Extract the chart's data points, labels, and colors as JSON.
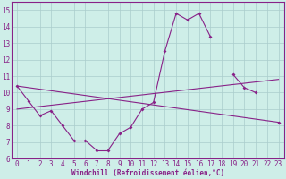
{
  "xlabel": "Windchill (Refroidissement éolien,°C)",
  "hours": [
    0,
    1,
    2,
    3,
    4,
    5,
    6,
    7,
    8,
    9,
    10,
    11,
    12,
    13,
    14,
    15,
    16,
    17,
    18,
    19,
    20,
    21,
    22,
    23
  ],
  "temp_curve": [
    10.4,
    9.5,
    8.6,
    8.9,
    8.0,
    7.1,
    7.1,
    6.5,
    6.5,
    7.5,
    7.9,
    9.0,
    9.4,
    12.5,
    14.8,
    14.4,
    14.8,
    13.4,
    null,
    11.1,
    10.3,
    10.0,
    null,
    8.2
  ],
  "straight_line1": [
    [
      0,
      10.4
    ],
    [
      23,
      8.2
    ]
  ],
  "straight_line2": [
    [
      0,
      9.0
    ],
    [
      23,
      10.8
    ]
  ],
  "background_color": "#ceeee8",
  "grid_color": "#aacccc",
  "line_color": "#882288",
  "ylim": [
    6,
    15.5
  ],
  "xlim": [
    -0.5,
    23.5
  ],
  "yticks": [
    6,
    7,
    8,
    9,
    10,
    11,
    12,
    13,
    14,
    15
  ],
  "xticks": [
    0,
    1,
    2,
    3,
    4,
    5,
    6,
    7,
    8,
    9,
    10,
    11,
    12,
    13,
    14,
    15,
    16,
    17,
    18,
    19,
    20,
    21,
    22,
    23
  ]
}
